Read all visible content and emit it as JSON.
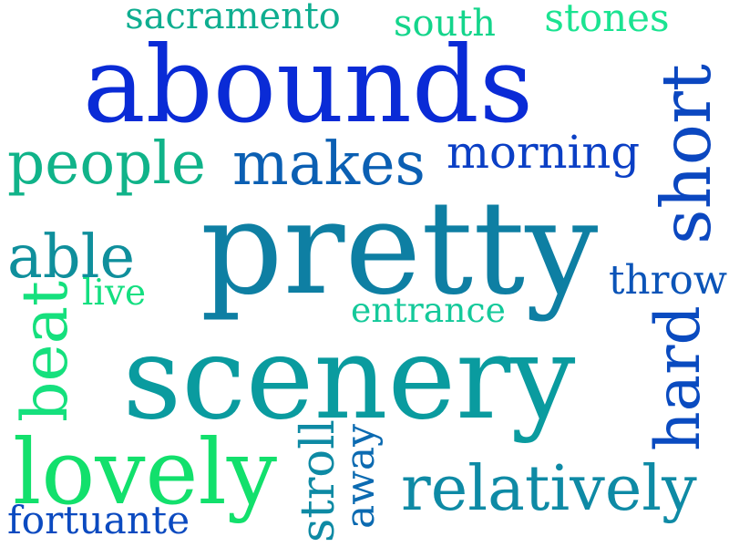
{
  "words": [
    {
      "text": "abounds",
      "color": "#0a2bd6",
      "orientation": "horizontal"
    },
    {
      "text": "pretty",
      "color": "#0e7fa3",
      "orientation": "horizontal"
    },
    {
      "text": "scenery",
      "color": "#0a9b9f",
      "orientation": "horizontal"
    },
    {
      "text": "lovely",
      "color": "#12e06c",
      "orientation": "horizontal"
    },
    {
      "text": "relatively",
      "color": "#0e8aa5",
      "orientation": "horizontal"
    },
    {
      "text": "people",
      "color": "#10b389",
      "orientation": "horizontal"
    },
    {
      "text": "makes",
      "color": "#0b5fb3",
      "orientation": "horizontal"
    },
    {
      "text": "morning",
      "color": "#0b3fc5",
      "orientation": "horizontal"
    },
    {
      "text": "able",
      "color": "#0f8f9c",
      "orientation": "horizontal"
    },
    {
      "text": "sacramento",
      "color": "#0fae90",
      "orientation": "horizontal"
    },
    {
      "text": "south",
      "color": "#14d58b",
      "orientation": "horizontal"
    },
    {
      "text": "stones",
      "color": "#1be391",
      "orientation": "horizontal"
    },
    {
      "text": "throw",
      "color": "#0b54b8",
      "orientation": "horizontal"
    },
    {
      "text": "live",
      "color": "#14df80",
      "orientation": "horizontal"
    },
    {
      "text": "entrance",
      "color": "#14c99a",
      "orientation": "horizontal"
    },
    {
      "text": "fortuante",
      "color": "#0b4ac0",
      "orientation": "horizontal"
    },
    {
      "text": "short",
      "color": "#0b47c0",
      "orientation": "vertical"
    },
    {
      "text": "hard",
      "color": "#0a4bc0",
      "orientation": "vertical"
    },
    {
      "text": "beat",
      "color": "#15e07d",
      "orientation": "vertical"
    },
    {
      "text": "stroll",
      "color": "#0e8aa4",
      "orientation": "vertical"
    },
    {
      "text": "away",
      "color": "#0b6ab1",
      "orientation": "vertical"
    }
  ]
}
